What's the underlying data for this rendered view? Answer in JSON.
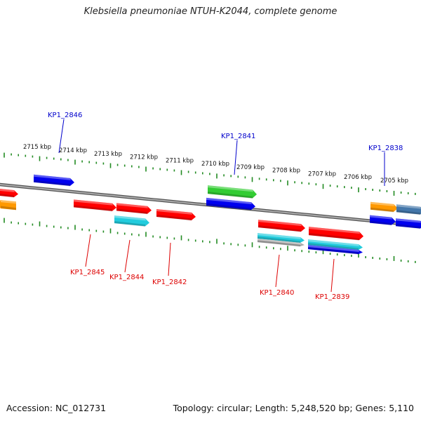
{
  "title": "Klebsiella pneumoniae NTUH-K2044, complete genome",
  "accession": "Accession: NC_012731",
  "topology": "Topology: circular; Length: 5,248,520 bp; Genes: 5,110",
  "colors": {
    "backbone": "#777777",
    "tick": "#228B22",
    "forward_label": "#0000cc",
    "reverse_label": "#dd0000",
    "red": "#ff0000",
    "blue": "#0000ee",
    "green": "#33cc33",
    "cyan": "#22ccdd",
    "orange": "#ff9900",
    "steel": "#4477aa",
    "gray": "#aaaaaa"
  },
  "kbp_labels": [
    "2715 kbp",
    "2714 kbp",
    "2713 kbp",
    "2712 kbp",
    "2711 kbp",
    "2710 kbp",
    "2709 kbp",
    "2708 kbp",
    "2707 kbp",
    "2706 kbp",
    "2705 kbp"
  ],
  "forward_genes": [
    {
      "id": "g-left-red",
      "color": "red"
    },
    {
      "id": "g-2846",
      "color": "blue"
    },
    {
      "id": "g-2841-green",
      "color": "green"
    },
    {
      "id": "g-2841-blue",
      "color": "blue"
    },
    {
      "id": "g-2838-orange",
      "color": "orange"
    },
    {
      "id": "g-2838-steel",
      "color": "steel"
    },
    {
      "id": "g-2838-blue",
      "color": "blue"
    },
    {
      "id": "g-2838-blue2",
      "color": "blue"
    }
  ],
  "reverse_genes": [
    {
      "id": "g-left-orange",
      "color": "orange"
    },
    {
      "id": "g-2845",
      "color": "red"
    },
    {
      "id": "g-2844-red",
      "color": "red"
    },
    {
      "id": "g-2844-cyan",
      "color": "cyan"
    },
    {
      "id": "g-2842",
      "color": "red"
    },
    {
      "id": "g-2840-red",
      "color": "red"
    },
    {
      "id": "g-2840-cyan",
      "color": "cyan"
    },
    {
      "id": "g-2840-gray",
      "color": "gray"
    },
    {
      "id": "g-2839-red",
      "color": "red"
    },
    {
      "id": "g-2839-cyan",
      "color": "cyan"
    },
    {
      "id": "g-2839-blue",
      "color": "blue"
    }
  ],
  "forward_labels": [
    "KP1_2846",
    "KP1_2841",
    "KP1_2838"
  ],
  "reverse_labels": [
    "KP1_2845",
    "KP1_2844",
    "KP1_2842",
    "KP1_2840",
    "KP1_2839"
  ]
}
